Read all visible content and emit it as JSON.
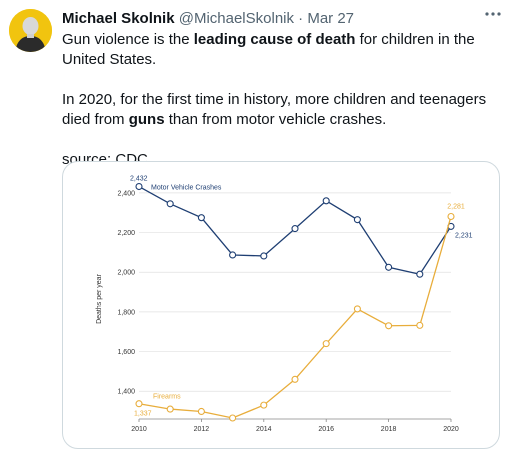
{
  "tweet": {
    "author_name": "Michael Skolnik",
    "handle": "@MichaelSkolnik",
    "separator": "·",
    "date": "Mar 27",
    "para1_pre": "Gun violence is the ",
    "para1_bold": "leading cause of death",
    "para1_post": " for children in the United States.",
    "para2_pre": "In 2020, for the first time in history, more children and teenagers died from ",
    "para2_bold": "guns",
    "para2_post": " than from motor vehicle crashes.",
    "para3": "source: CDC",
    "more_icon": "more-horizontal-icon"
  },
  "colors": {
    "avatar_bg": "#f1c40f",
    "motor_vehicle": "#1f3f73",
    "firearms": "#e8ad3b",
    "grid": "#e0e0e0"
  },
  "chart_data": {
    "type": "line",
    "x": [
      2010,
      2011,
      2012,
      2013,
      2014,
      2015,
      2016,
      2017,
      2018,
      2019,
      2020
    ],
    "series": [
      {
        "name": "Motor Vehicle Crashes",
        "values": [
          2432,
          2345,
          2275,
          2087,
          2082,
          2220,
          2360,
          2265,
          2025,
          1990,
          2231
        ]
      },
      {
        "name": "Firearms",
        "values": [
          1337,
          1310,
          1298,
          1265,
          1330,
          1460,
          1640,
          1815,
          1730,
          1732,
          2281
        ]
      }
    ],
    "xticks": [
      "2010",
      "2012",
      "2014",
      "2016",
      "2018",
      "2020"
    ],
    "yticks": [
      "1,400",
      "1,600",
      "1,800",
      "2,000",
      "2,200",
      "2,400"
    ],
    "ylabel": "Deaths per year",
    "ylim": [
      1260,
      2470
    ],
    "point_labels": {
      "mv_first": "2,432",
      "mv_last": "2,231",
      "fa_first": "1,337",
      "fa_last": "2,281"
    }
  }
}
